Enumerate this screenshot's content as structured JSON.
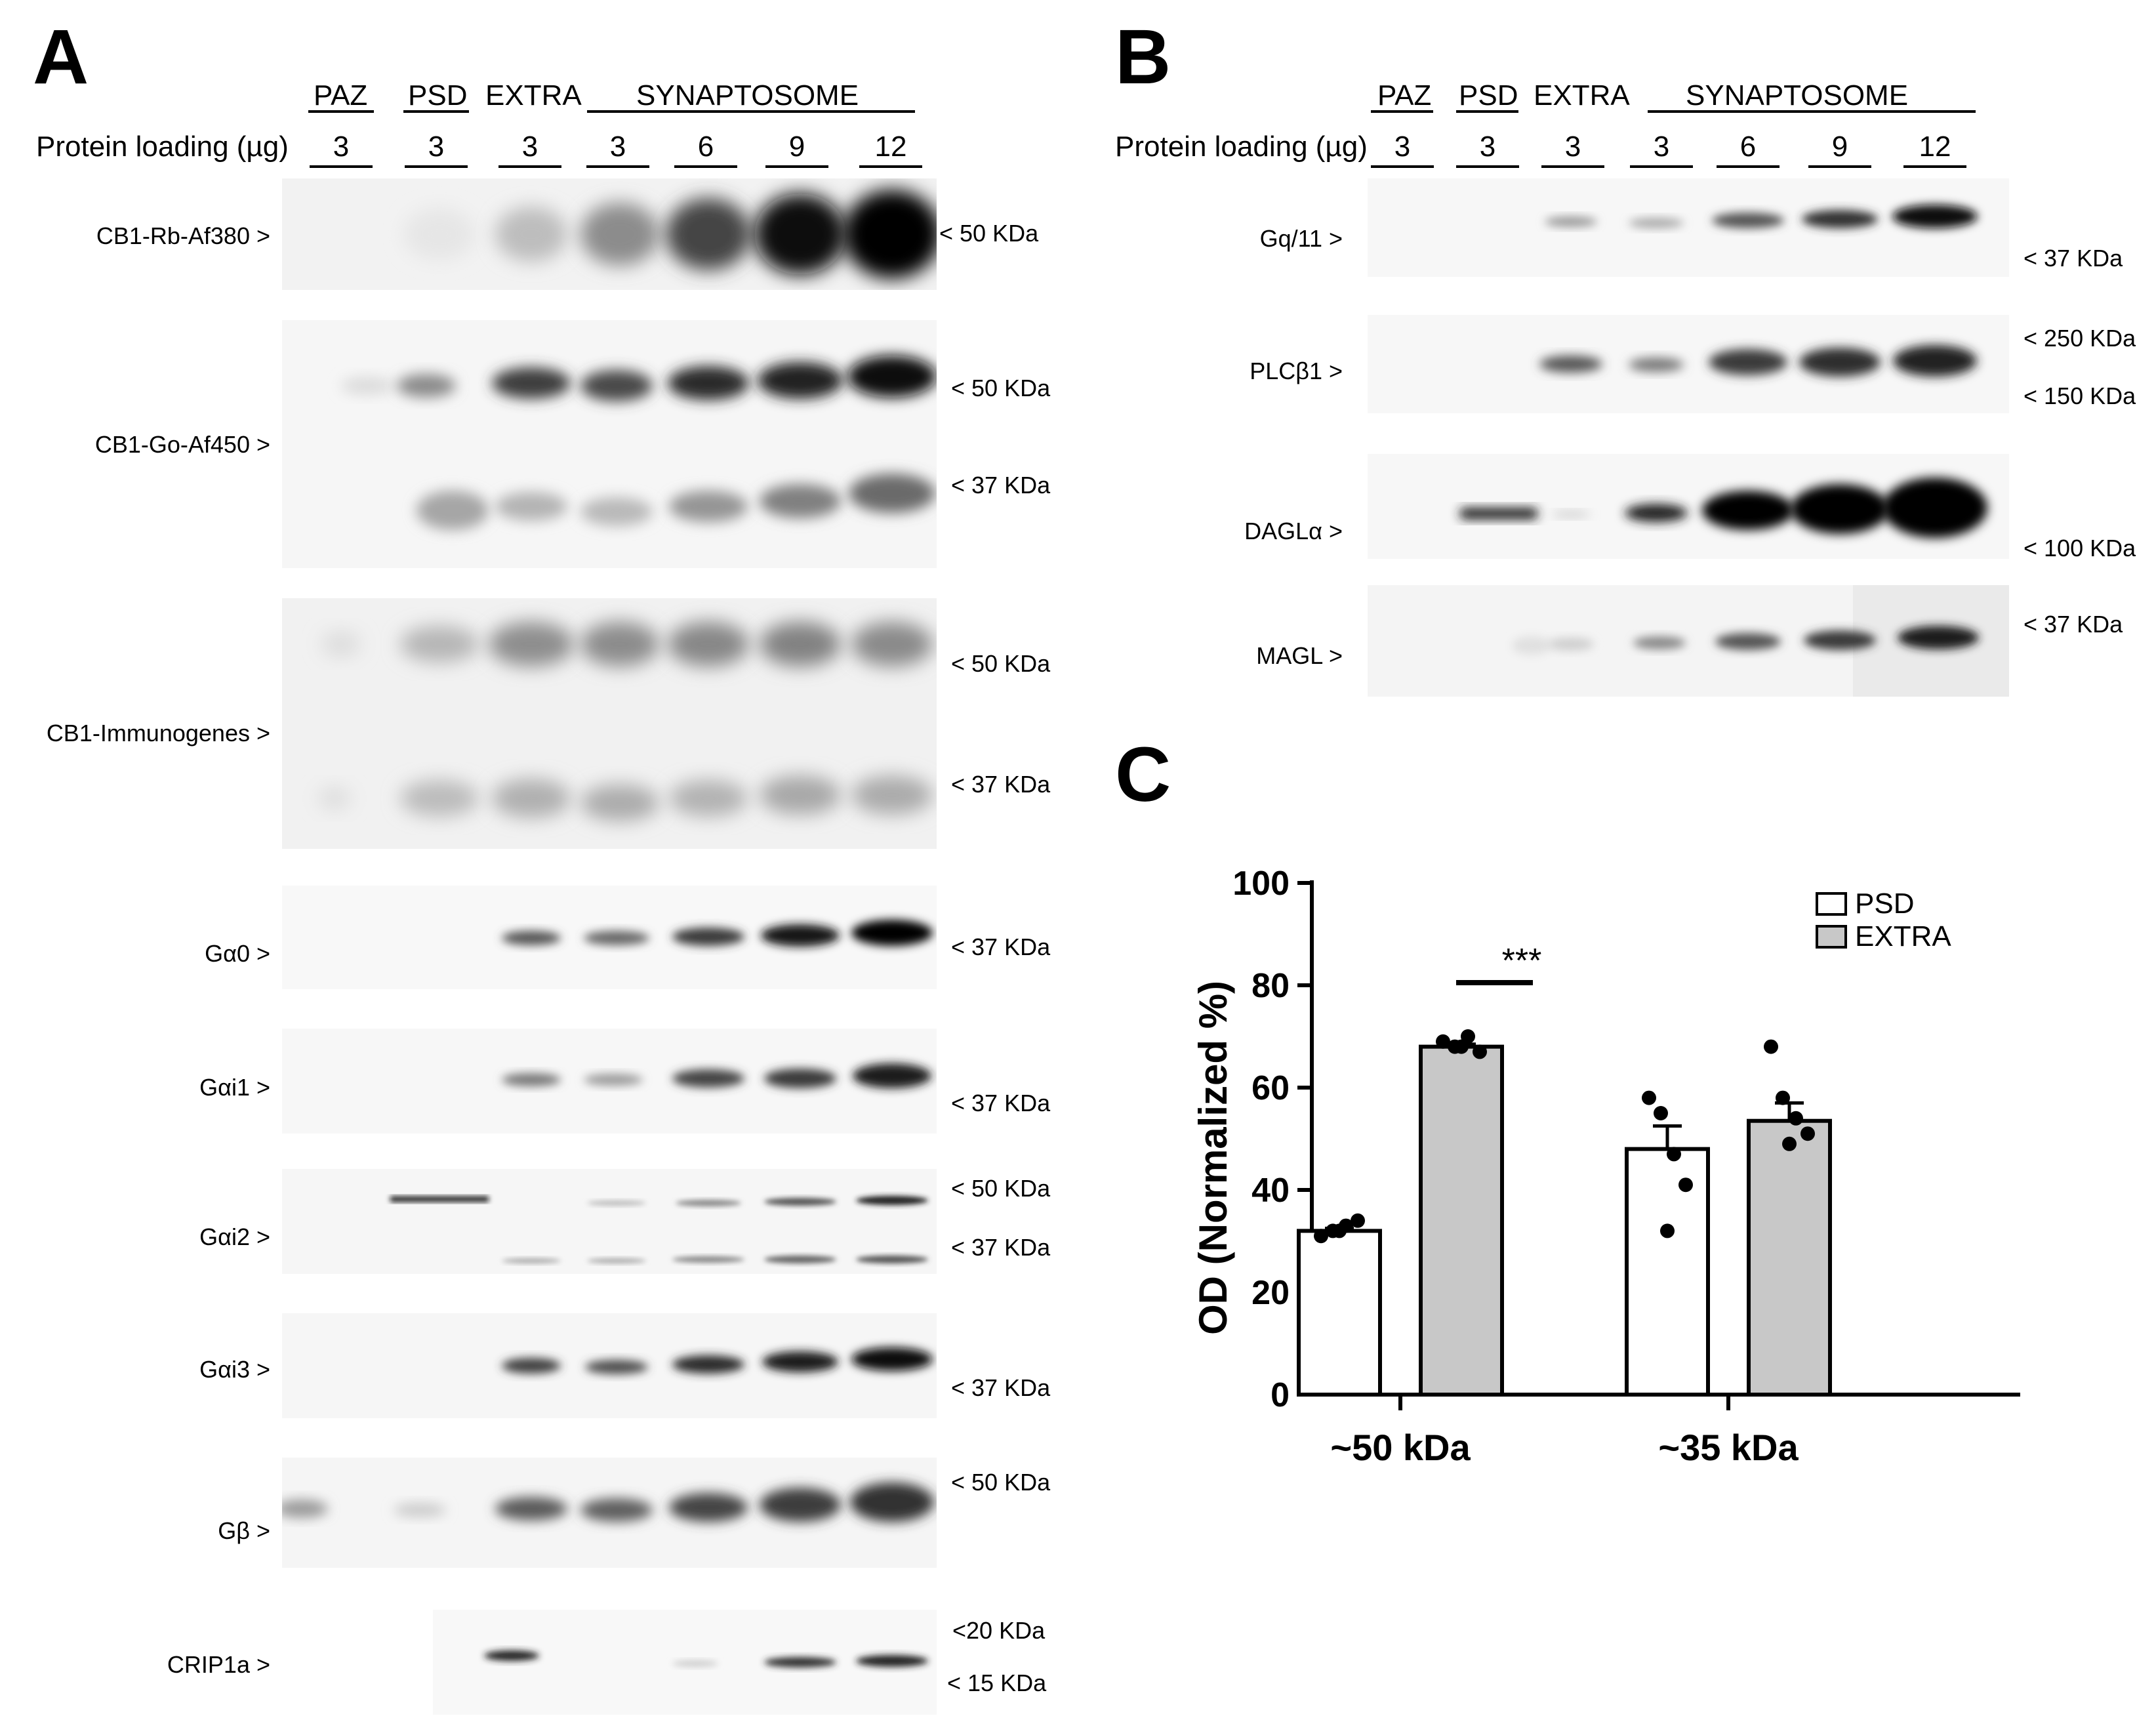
{
  "panels": {
    "a": "A",
    "b": "B",
    "c": "C"
  },
  "blot_header": {
    "protein_loading_label": "Protein loading (µg)",
    "groups": [
      "PAZ",
      "PSD",
      "EXTRA",
      "SYNAPTOSOME"
    ],
    "lane_loadings": [
      "3",
      "3",
      "3",
      "3",
      "6",
      "9",
      "12"
    ]
  },
  "panel_a_rows": [
    {
      "label": "CB1-Rb-Af380 >",
      "markers": [
        "< 50 KDa"
      ]
    },
    {
      "label": "CB1-Go-Af450 >",
      "markers": [
        "< 50 KDa",
        "< 37 KDa"
      ]
    },
    {
      "label": "CB1-Immunogenes >",
      "markers": [
        "< 50 KDa",
        "< 37 KDa"
      ]
    },
    {
      "label": "Gα0 >",
      "markers": [
        "< 37 KDa"
      ]
    },
    {
      "label": "Gαi1 >",
      "markers": [
        "< 37 KDa"
      ]
    },
    {
      "label": "Gαi2 >",
      "markers": [
        "< 50 KDa",
        "< 37 KDa"
      ]
    },
    {
      "label": "Gαi3 >",
      "markers": [
        "< 37 KDa"
      ]
    },
    {
      "label": "Gβ >",
      "markers": [
        "< 50 KDa"
      ]
    },
    {
      "label": "CRIP1a >",
      "markers": [
        "<20 KDa",
        "< 15 KDa"
      ]
    }
  ],
  "panel_b_rows": [
    {
      "label": "Gq/11 >",
      "markers": [
        "< 37 KDa"
      ]
    },
    {
      "label": "PLCβ1 >",
      "markers": [
        "< 250 KDa",
        "< 150 KDa"
      ]
    },
    {
      "label": "DAGLα >",
      "markers": [
        "< 100 KDa"
      ]
    },
    {
      "label": "MAGL >",
      "markers": [
        "< 37 KDa"
      ]
    }
  ],
  "chart_data": {
    "type": "bar",
    "categories": [
      "~50 kDa",
      "~35 kDa"
    ],
    "series": [
      {
        "name": "PSD",
        "values": [
          32,
          48
        ],
        "color": "#ffffff",
        "points": [
          [
            31,
            32,
            33,
            34,
            32
          ],
          [
            58,
            55,
            47,
            41,
            32
          ]
        ],
        "sem": [
          0.5,
          4.5
        ]
      },
      {
        "name": "EXTRA",
        "values": [
          68,
          53.5
        ],
        "color": "#c8c8c8",
        "points": [
          [
            69,
            68,
            70,
            67,
            68
          ],
          [
            68,
            58,
            54,
            51,
            49
          ]
        ],
        "sem": [
          0.5,
          3.5
        ]
      }
    ],
    "ylabel": "OD (Normalized %)",
    "ylim": [
      0,
      100
    ],
    "yticks": [
      "0",
      "20",
      "40",
      "60",
      "80",
      "100"
    ],
    "significance": "***",
    "legend_position": "top-right",
    "grid": false
  }
}
